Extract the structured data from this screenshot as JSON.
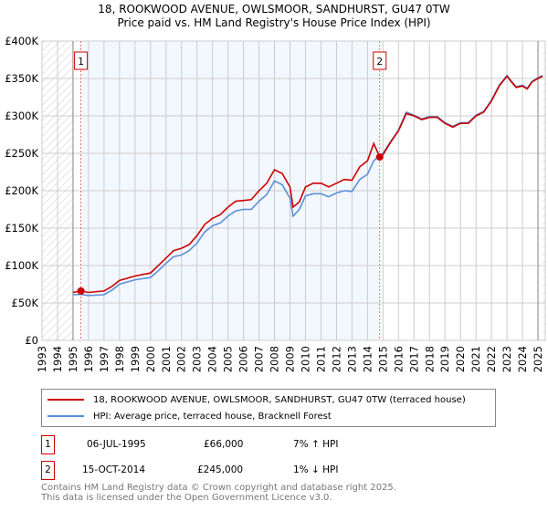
{
  "chart_data": {
    "type": "line",
    "title": "18, ROOKWOOD AVENUE, OWLSMOOR, SANDHURST, GU47 0TW",
    "subtitle": "Price paid vs. HM Land Registry's House Price Index (HPI)",
    "xlim": [
      1993,
      2025.5
    ],
    "ylim": [
      0,
      400000
    ],
    "x_ticks": [
      "1993",
      "1994",
      "1995",
      "1996",
      "1997",
      "1998",
      "1999",
      "2000",
      "2001",
      "2002",
      "2003",
      "2004",
      "2005",
      "2006",
      "2007",
      "2008",
      "2009",
      "2010",
      "2011",
      "2012",
      "2013",
      "2014",
      "2015",
      "2016",
      "2017",
      "2018",
      "2019",
      "2020",
      "2021",
      "2022",
      "2023",
      "2024",
      "2025",
      "2026"
    ],
    "y_ticks": [
      {
        "v": 0,
        "label": "£0"
      },
      {
        "v": 50000,
        "label": "£50K"
      },
      {
        "v": 100000,
        "label": "£100K"
      },
      {
        "v": 150000,
        "label": "£150K"
      },
      {
        "v": 200000,
        "label": "£200K"
      },
      {
        "v": 250000,
        "label": "£250K"
      },
      {
        "v": 300000,
        "label": "£300K"
      },
      {
        "v": 350000,
        "label": "£350K"
      },
      {
        "v": 400000,
        "label": "£400K"
      }
    ],
    "grid": true,
    "shaded_period": [
      1995.51,
      2014.79
    ],
    "hatched_before": 1995,
    "hatched_after": 2025.3,
    "series": [
      {
        "name": "18, ROOKWOOD AVENUE, OWLSMOOR, SANDHURST, GU47 0TW (terraced house)",
        "color": "#cc0000",
        "x": [
          1995.0,
          1995.5,
          1996,
          1997,
          1997.5,
          1998,
          1999,
          2000,
          2000.5,
          2001,
          2001.5,
          2002,
          2002.5,
          2003,
          2003.5,
          2004,
          2004.5,
          2005,
          2005.5,
          2006,
          2006.5,
          2007,
          2007.5,
          2008,
          2008.5,
          2009,
          2009.2,
          2009.6,
          2010,
          2010.5,
          2011,
          2011.5,
          2012,
          2012.5,
          2013,
          2013.5,
          2014,
          2014.4,
          2014.79,
          2015,
          2015.5,
          2016,
          2016.5,
          2017,
          2017.5,
          2018,
          2018.5,
          2019,
          2019.5,
          2020,
          2020.5,
          2021,
          2021.5,
          2022,
          2022.5,
          2023,
          2023.3,
          2023.6,
          2024,
          2024.3,
          2024.6,
          2025,
          2025.3
        ],
        "y": [
          64000,
          66000,
          64000,
          66000,
          72000,
          80000,
          86000,
          90000,
          100000,
          110000,
          120000,
          123000,
          128000,
          140000,
          155000,
          163000,
          168000,
          178000,
          186000,
          187000,
          188000,
          200000,
          210000,
          228000,
          223000,
          205000,
          178000,
          185000,
          205000,
          210000,
          210000,
          205000,
          210000,
          215000,
          214000,
          232000,
          240000,
          263000,
          245000,
          248000,
          265000,
          280000,
          303000,
          300000,
          295000,
          298000,
          298000,
          290000,
          285000,
          290000,
          290000,
          300000,
          305000,
          320000,
          340000,
          353000,
          345000,
          338000,
          340000,
          336000,
          345000,
          350000,
          353000
        ]
      },
      {
        "name": "HPI: Average price, terraced house, Bracknell Forest",
        "color": "#5b8fd6",
        "x": [
          1995.0,
          1995.5,
          1996,
          1997,
          1997.5,
          1998,
          1999,
          2000,
          2000.5,
          2001,
          2001.5,
          2002,
          2002.5,
          2003,
          2003.5,
          2004,
          2004.5,
          2005,
          2005.5,
          2006,
          2006.5,
          2007,
          2007.5,
          2008,
          2008.5,
          2009,
          2009.2,
          2009.6,
          2010,
          2010.5,
          2011,
          2011.5,
          2012,
          2012.5,
          2013,
          2013.5,
          2014,
          2014.4,
          2014.79,
          2015,
          2015.5,
          2016,
          2016.5,
          2017,
          2017.5,
          2018,
          2018.5,
          2019,
          2019.5,
          2020,
          2020.5,
          2021,
          2021.5,
          2022,
          2022.5,
          2023,
          2023.3,
          2023.6,
          2024,
          2024.3,
          2024.6,
          2025,
          2025.3
        ],
        "y": [
          61000,
          61500,
          60000,
          61000,
          67000,
          75000,
          81000,
          84000,
          93000,
          103000,
          112000,
          114000,
          120000,
          130000,
          145000,
          153000,
          157000,
          166000,
          173000,
          175000,
          175000,
          186000,
          195000,
          213000,
          208000,
          190000,
          166000,
          175000,
          193000,
          196000,
          196000,
          192000,
          197000,
          200000,
          199000,
          215000,
          222000,
          240000,
          247000,
          250000,
          266000,
          281000,
          305000,
          301000,
          296000,
          299000,
          299000,
          291000,
          286000,
          291000,
          291000,
          301000,
          306000,
          321000,
          341000,
          354000,
          346000,
          339000,
          341000,
          337000,
          346000,
          351000,
          354000
        ]
      }
    ],
    "sales": [
      {
        "label": "1",
        "x": 1995.51,
        "y": 66000
      },
      {
        "label": "2",
        "x": 2014.79,
        "y": 245000
      }
    ]
  },
  "legend": {
    "property": "18, ROOKWOOD AVENUE, OWLSMOOR, SANDHURST, GU47 0TW (terraced house)",
    "hpi": "HPI: Average price, terraced house, Bracknell Forest"
  },
  "transactions": [
    {
      "num": "1",
      "date": "06-JUL-1995",
      "price": "£66,000",
      "delta": "7% ↑ HPI"
    },
    {
      "num": "2",
      "date": "15-OCT-2014",
      "price": "£245,000",
      "delta": "1% ↓ HPI"
    }
  ],
  "footer": {
    "line1": "Contains HM Land Registry data © Crown copyright and database right 2025.",
    "line2": "This data is licensed under the Open Government Licence v3.0."
  }
}
